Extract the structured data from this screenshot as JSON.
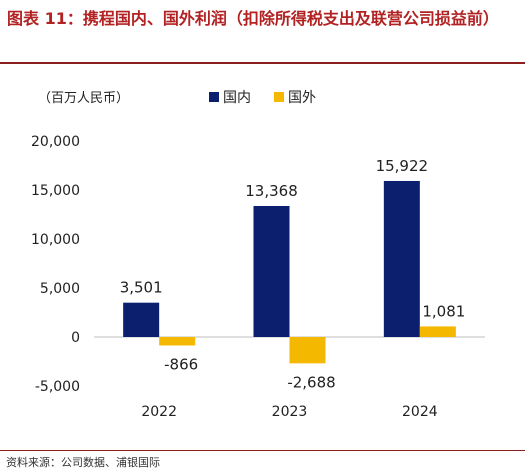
{
  "header": {
    "title": "图表 11：携程国内、国外利润（扣除所得税支出及联营公司损益前）"
  },
  "footer": {
    "source": "资料来源：公司数据、浦银国际"
  },
  "colors": {
    "domestic": "#0b1f6e",
    "overseas": "#f5b800",
    "title": "#b22222"
  },
  "chart_data": {
    "type": "bar",
    "unit_label": "（百万人民币）",
    "categories": [
      "2022",
      "2023",
      "2024"
    ],
    "series": [
      {
        "name": "国内",
        "values": [
          3501,
          13368,
          15922
        ],
        "labels": [
          "3,501",
          "13,368",
          "15,922"
        ]
      },
      {
        "name": "国外",
        "values": [
          -866,
          -2688,
          1081
        ],
        "labels": [
          "-866",
          "-2,688",
          "1,081"
        ]
      }
    ],
    "ylim": [
      -5000,
      20000
    ],
    "yticks": [
      -5000,
      0,
      5000,
      10000,
      15000,
      20000
    ],
    "ytick_labels": [
      "-5,000",
      "0",
      "5,000",
      "10,000",
      "15,000",
      "20,000"
    ],
    "legend_position": "top",
    "grid": false
  }
}
